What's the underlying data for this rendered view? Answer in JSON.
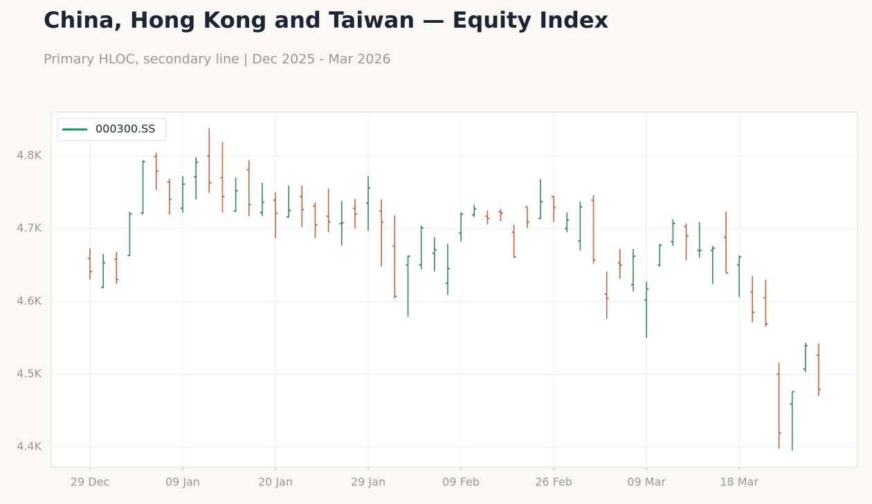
{
  "chart_data": {
    "type": "ohlc",
    "title": "China, Hong Kong and Taiwan — Equity Index",
    "subtitle": "Primary HLOC, secondary line | Dec 2025 - Mar 2026",
    "categories": [
      "29 Dec",
      null,
      null,
      null,
      null,
      null,
      null,
      "09 Jan",
      null,
      null,
      null,
      null,
      null,
      null,
      "20 Jan",
      null,
      null,
      null,
      null,
      null,
      null,
      "29 Jan",
      null,
      null,
      null,
      null,
      null,
      null,
      "09 Feb",
      null,
      null,
      null,
      null,
      null,
      null,
      "26 Feb",
      null,
      null,
      null,
      null,
      null,
      null,
      "09 Mar",
      null,
      null,
      null,
      null,
      null,
      null,
      "18 Mar",
      null,
      null,
      null,
      null,
      null,
      null
    ],
    "series": [
      {
        "name": "000300.SS",
        "color": "#0a9a6a",
        "up_color": "#2e8b57",
        "down_color": "#c8613a",
        "open": [
          4659,
          4619,
          4658,
          4663,
          4721,
          4799,
          4764,
          4728,
          4771,
          4800,
          4770,
          4724,
          4781,
          4722,
          4739,
          4716,
          4744,
          4731,
          4717,
          4707,
          4728,
          4735,
          4724,
          4676,
          4650,
          4650,
          4666,
          4625,
          4694,
          4719,
          4717,
          4723,
          4695,
          4730,
          4714,
          4744,
          4700,
          4683,
          4739,
          4610,
          4653,
          4623,
          4602,
          4650,
          4682,
          4703,
          4670,
          4670,
          4688,
          4650,
          4613,
          4605,
          4500,
          4459,
          4507,
          4526
        ],
        "high": [
          4673,
          4665,
          4668,
          4723,
          4794,
          4804,
          4768,
          4772,
          4798,
          4838,
          4819,
          4770,
          4794,
          4763,
          4750,
          4759,
          4759,
          4736,
          4755,
          4738,
          4741,
          4772,
          4740,
          4718,
          4663,
          4704,
          4688,
          4679,
          4722,
          4733,
          4725,
          4727,
          4705,
          4730,
          4768,
          4745,
          4722,
          4737,
          4746,
          4641,
          4672,
          4672,
          4627,
          4679,
          4713,
          4707,
          4709,
          4676,
          4723,
          4663,
          4635,
          4630,
          4516,
          4476,
          4543,
          4542
        ],
        "low": [
          4630,
          4618,
          4624,
          4663,
          4720,
          4753,
          4719,
          4722,
          4740,
          4749,
          4722,
          4723,
          4717,
          4717,
          4687,
          4715,
          4702,
          4687,
          4695,
          4677,
          4700,
          4697,
          4648,
          4604,
          4579,
          4644,
          4641,
          4609,
          4682,
          4716,
          4706,
          4710,
          4660,
          4701,
          4713,
          4709,
          4695,
          4670,
          4652,
          4576,
          4631,
          4614,
          4550,
          4648,
          4676,
          4656,
          4660,
          4624,
          4639,
          4606,
          4571,
          4565,
          4398,
          4395,
          4503,
          4470
        ],
        "close": [
          4641,
          4653,
          4630,
          4720,
          4792,
          4779,
          4740,
          4761,
          4791,
          4763,
          4744,
          4752,
          4733,
          4736,
          4721,
          4725,
          4726,
          4705,
          4709,
          4708,
          4720,
          4756,
          4709,
          4607,
          4662,
          4701,
          4671,
          4645,
          4720,
          4727,
          4714,
          4721,
          4661,
          4709,
          4737,
          4729,
          4712,
          4730,
          4657,
          4604,
          4650,
          4662,
          4617,
          4677,
          4707,
          4690,
          4670,
          4673,
          4639,
          4661,
          4585,
          4569,
          4419,
          4476,
          4539,
          4479
        ]
      }
    ],
    "ylim": [
      4372,
      4860
    ],
    "yticks": [
      {
        "value": 4400,
        "label": "4.4K"
      },
      {
        "value": 4500,
        "label": "4.5K"
      },
      {
        "value": 4600,
        "label": "4.6K"
      },
      {
        "value": 4700,
        "label": "4.7K"
      },
      {
        "value": 4800,
        "label": "4.8K"
      }
    ],
    "grid": true,
    "legend": "upper left"
  }
}
